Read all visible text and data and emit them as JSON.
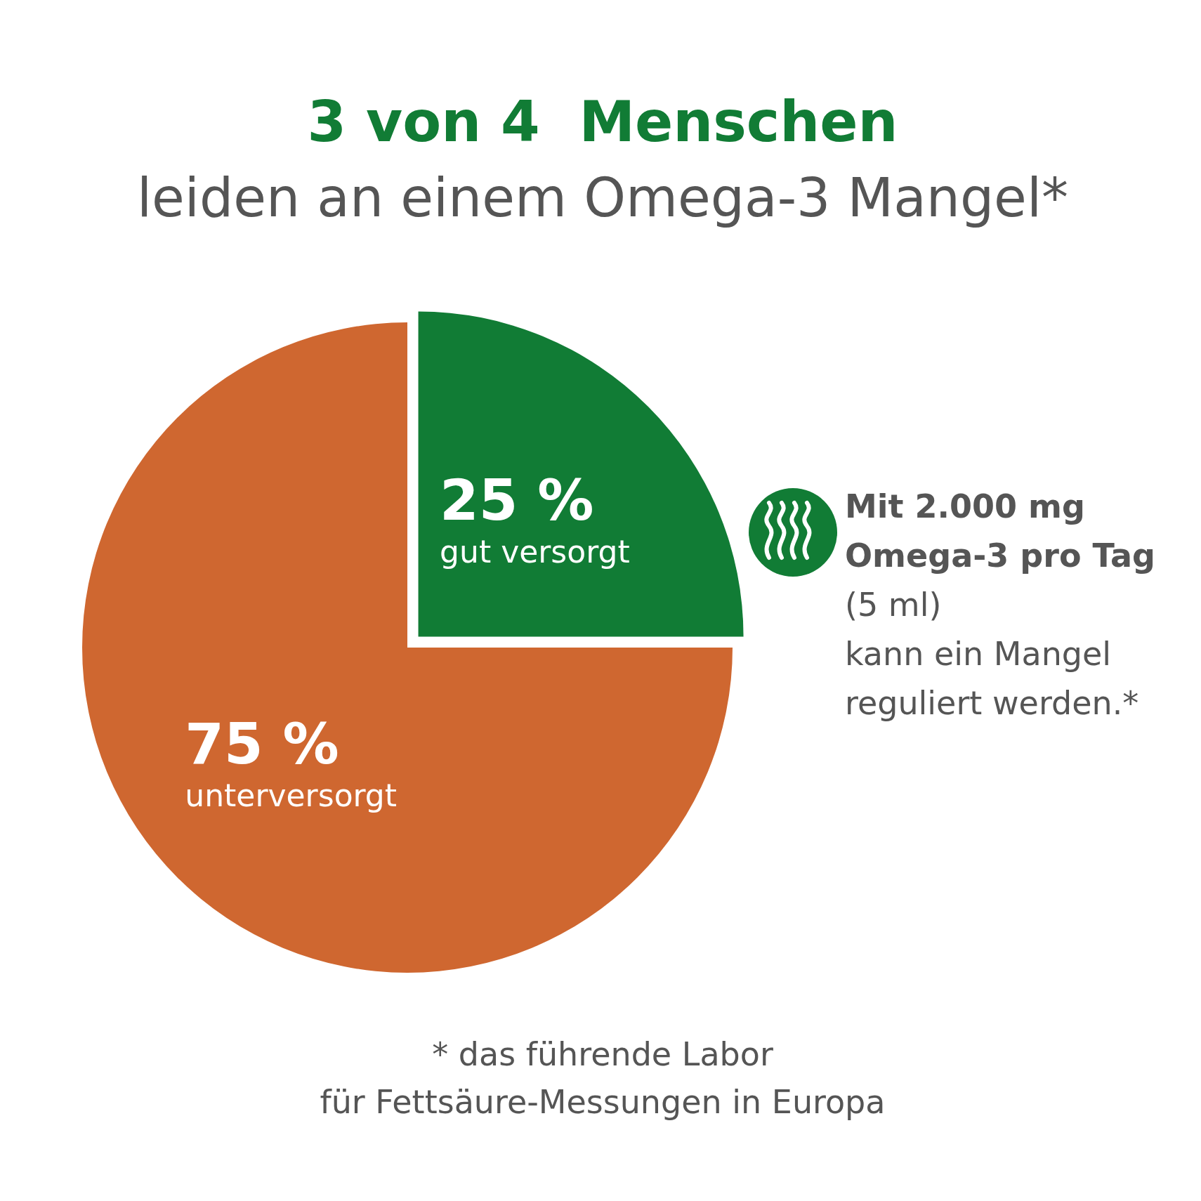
{
  "chart_data": {
    "type": "pie",
    "title": "3 von 4  Menschen",
    "subtitle": "leiden an einem Omega-3 Mangel*",
    "categories": [
      "gut versorgt",
      "unterversorgt"
    ],
    "values": [
      25,
      75
    ],
    "colors": [
      "#117c35",
      "#cf6730"
    ],
    "value_labels": [
      "25 %",
      "75 %"
    ],
    "annotations": [
      "Mit 2.000 mg",
      "Omega-3 pro Tag",
      "(5 ml)",
      "kann ein Mangel",
      "reguliert werden.*",
      "* das führende Labor für Fettsäure-Messungen in Europa"
    ]
  }
}
